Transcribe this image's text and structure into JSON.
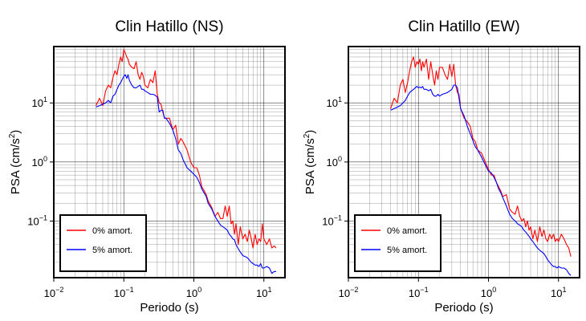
{
  "colors": {
    "undamped": "#ff0000",
    "damped": "#0000ff",
    "frame": "#000000",
    "grid": "#000000"
  },
  "chart_data": [
    {
      "type": "line",
      "title": "Clin Hatillo (NS)",
      "xlabel": "Periodo (s)",
      "ylabel_main": "PSA (cm/s",
      "ylabel_sup": "2",
      "ylabel_end": ")",
      "x_scale": "log",
      "y_scale": "log",
      "xlim": [
        0.01,
        20
      ],
      "ylim": [
        0.011,
        90
      ],
      "grid": true,
      "x_ticks": [
        {
          "base": "10",
          "exp": "−2"
        },
        {
          "base": "10",
          "exp": "−1"
        },
        {
          "base": "10",
          "exp": "0"
        },
        {
          "base": "10",
          "exp": "1"
        }
      ],
      "y_ticks": [
        {
          "base": "10",
          "exp": "−1"
        },
        {
          "base": "10",
          "exp": "0"
        },
        {
          "base": "10",
          "exp": "1"
        }
      ],
      "legend": {
        "placement": "bottom-left",
        "entries": [
          "0% amort.",
          "5% amort."
        ]
      },
      "x": [
        0.04,
        0.045,
        0.05,
        0.055,
        0.06,
        0.065,
        0.07,
        0.075,
        0.08,
        0.085,
        0.09,
        0.095,
        0.1,
        0.105,
        0.11,
        0.115,
        0.12,
        0.13,
        0.14,
        0.15,
        0.16,
        0.17,
        0.18,
        0.19,
        0.2,
        0.22,
        0.24,
        0.26,
        0.28,
        0.3,
        0.32,
        0.34,
        0.36,
        0.38,
        0.4,
        0.45,
        0.5,
        0.55,
        0.6,
        0.65,
        0.7,
        0.8,
        0.9,
        1.0,
        1.1,
        1.2,
        1.3,
        1.4,
        1.5,
        1.6,
        1.8,
        2.0,
        2.2,
        2.4,
        2.6,
        2.8,
        3.0,
        3.2,
        3.4,
        3.6,
        3.8,
        4.0,
        4.3,
        4.6,
        5.0,
        5.4,
        5.8,
        6.2,
        6.6,
        7.0,
        7.5,
        8.0,
        8.5,
        9.0,
        9.5,
        10.0,
        11.0,
        12.0,
        13.0,
        14.0,
        15.0
      ],
      "series": [
        {
          "name": "0% amort.",
          "color": "#ff0000",
          "values": [
            9,
            12,
            9,
            16,
            20,
            18,
            27,
            35,
            30,
            45,
            60,
            50,
            80,
            70,
            60,
            55,
            45,
            40,
            38,
            50,
            30,
            25,
            33,
            28,
            20,
            18,
            25,
            22,
            35,
            14,
            10,
            9.5,
            7,
            5.6,
            5.5,
            5.5,
            3.5,
            4.2,
            2,
            2.5,
            2.2,
            1.6,
            1.0,
            0.8,
            0.8,
            0.6,
            0.38,
            0.33,
            0.28,
            0.22,
            0.17,
            0.12,
            0.14,
            0.11,
            0.11,
            0.18,
            0.12,
            0.18,
            0.09,
            0.1,
            0.06,
            0.09,
            0.04,
            0.08,
            0.05,
            0.06,
            0.045,
            0.07,
            0.05,
            0.035,
            0.06,
            0.04,
            0.05,
            0.045,
            0.09,
            0.05,
            0.04,
            0.05,
            0.035,
            0.038,
            0.035
          ]
        },
        {
          "name": "5% amort.",
          "color": "#0000ff",
          "values": [
            8.5,
            9,
            9.5,
            10,
            11,
            10,
            13,
            14,
            17,
            20,
            22,
            25,
            28,
            30,
            26,
            30,
            24,
            20,
            18,
            18,
            19,
            20,
            17,
            17,
            16,
            15,
            14,
            14,
            13.5,
            12.5,
            7,
            7.5,
            7.5,
            5.5,
            5.5,
            4.5,
            3.5,
            2.5,
            1.6,
            1.4,
            1.1,
            0.8,
            0.7,
            0.62,
            0.55,
            0.45,
            0.35,
            0.3,
            0.26,
            0.2,
            0.16,
            0.12,
            0.1,
            0.085,
            0.08,
            0.075,
            0.07,
            0.06,
            0.055,
            0.05,
            0.048,
            0.04,
            0.034,
            0.03,
            0.026,
            0.025,
            0.024,
            0.022,
            0.02,
            0.019,
            0.018,
            0.018,
            0.017,
            0.019,
            0.016,
            0.016,
            0.017,
            0.016,
            0.013,
            0.014,
            0.014
          ]
        }
      ]
    },
    {
      "type": "line",
      "title": "Clin Hatillo (EW)",
      "xlabel": "Periodo (s)",
      "ylabel_main": "PSA (cm/s",
      "ylabel_sup": "2",
      "ylabel_end": ")",
      "x_scale": "log",
      "y_scale": "log",
      "xlim": [
        0.01,
        20
      ],
      "ylim": [
        0.011,
        90
      ],
      "grid": true,
      "x_ticks": [
        {
          "base": "10",
          "exp": "−2"
        },
        {
          "base": "10",
          "exp": "−1"
        },
        {
          "base": "10",
          "exp": "0"
        },
        {
          "base": "10",
          "exp": "1"
        }
      ],
      "y_ticks": [
        {
          "base": "10",
          "exp": "−1"
        },
        {
          "base": "10",
          "exp": "0"
        },
        {
          "base": "10",
          "exp": "1"
        }
      ],
      "legend": {
        "placement": "bottom-left",
        "entries": [
          "0% amort.",
          "5% amort."
        ]
      },
      "x": [
        0.04,
        0.045,
        0.05,
        0.055,
        0.06,
        0.065,
        0.07,
        0.075,
        0.08,
        0.085,
        0.09,
        0.095,
        0.1,
        0.105,
        0.11,
        0.115,
        0.12,
        0.13,
        0.14,
        0.15,
        0.16,
        0.17,
        0.18,
        0.19,
        0.2,
        0.22,
        0.24,
        0.26,
        0.28,
        0.3,
        0.32,
        0.34,
        0.36,
        0.38,
        0.4,
        0.45,
        0.5,
        0.55,
        0.6,
        0.65,
        0.7,
        0.8,
        0.9,
        1.0,
        1.1,
        1.2,
        1.3,
        1.4,
        1.5,
        1.6,
        1.8,
        2.0,
        2.2,
        2.4,
        2.6,
        2.8,
        3.0,
        3.2,
        3.4,
        3.6,
        3.8,
        4.0,
        4.3,
        4.6,
        5.0,
        5.4,
        5.8,
        6.2,
        6.6,
        7.0,
        7.5,
        8.0,
        8.5,
        9.0,
        9.5,
        10.0,
        11.0,
        12.0,
        13.0,
        14.0,
        15.0
      ],
      "series": [
        {
          "name": "0% amort.",
          "color": "#ff0000",
          "values": [
            8,
            12,
            10,
            20,
            25,
            15,
            22,
            35,
            50,
            60,
            40,
            50,
            45,
            55,
            35,
            50,
            40,
            55,
            25,
            50,
            30,
            20,
            35,
            25,
            40,
            40,
            30,
            25,
            45,
            28,
            45,
            20,
            15,
            14,
            8,
            5.5,
            4.8,
            4,
            2.5,
            2.2,
            1.6,
            1.4,
            1.0,
            0.75,
            0.6,
            0.6,
            0.45,
            0.38,
            0.32,
            0.26,
            0.28,
            0.16,
            0.14,
            0.13,
            0.18,
            0.12,
            0.1,
            0.11,
            0.08,
            0.1,
            0.07,
            0.08,
            0.05,
            0.07,
            0.045,
            0.08,
            0.055,
            0.07,
            0.05,
            0.045,
            0.06,
            0.05,
            0.06,
            0.045,
            0.05,
            0.045,
            0.06,
            0.05,
            0.04,
            0.035,
            0.025
          ]
        },
        {
          "name": "5% amort.",
          "color": "#0000ff",
          "values": [
            7.5,
            8,
            8.5,
            9,
            10,
            11,
            13,
            15,
            16,
            17,
            18,
            19,
            18,
            18.5,
            18,
            19,
            17,
            17,
            16,
            17,
            14,
            13,
            13,
            14,
            13,
            14,
            14.5,
            15,
            16,
            17,
            20,
            20,
            18,
            12,
            8,
            6,
            4,
            3,
            2.3,
            1.8,
            1.6,
            1.2,
            0.9,
            0.7,
            0.65,
            0.55,
            0.45,
            0.35,
            0.3,
            0.25,
            0.18,
            0.13,
            0.11,
            0.1,
            0.09,
            0.085,
            0.08,
            0.07,
            0.065,
            0.06,
            0.055,
            0.05,
            0.045,
            0.04,
            0.035,
            0.032,
            0.03,
            0.028,
            0.025,
            0.022,
            0.02,
            0.018,
            0.017,
            0.017,
            0.016,
            0.017,
            0.016,
            0.016,
            0.015,
            0.013,
            0.012
          ]
        }
      ]
    }
  ]
}
